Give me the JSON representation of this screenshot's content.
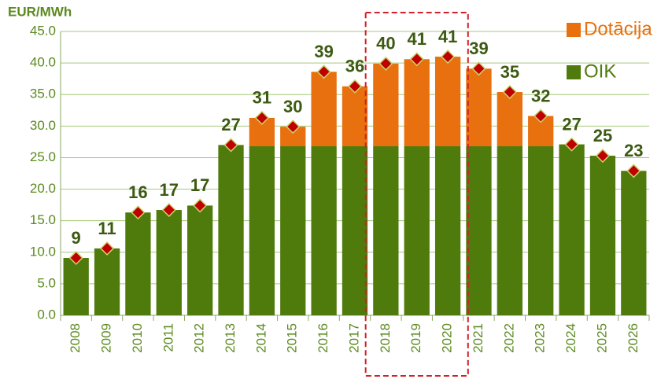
{
  "chart_data": {
    "type": "stacked_bar",
    "ylabel": "EUR/MWh",
    "categories": [
      "2008",
      "2009",
      "2010",
      "2011",
      "2012",
      "2013",
      "2014",
      "2015",
      "2016",
      "2017",
      "2018",
      "2019",
      "2020",
      "2021",
      "2022",
      "2023",
      "2024",
      "2025",
      "2026"
    ],
    "series": [
      {
        "name": "OIK",
        "color": "#4f7b0c",
        "values": [
          9.1,
          10.6,
          16.3,
          16.7,
          17.4,
          27.0,
          26.8,
          26.8,
          26.8,
          26.8,
          26.8,
          26.8,
          26.8,
          26.8,
          26.8,
          26.8,
          27.1,
          25.3,
          22.9
        ]
      },
      {
        "name": "Dotācija",
        "color": "#e8700e",
        "values": [
          0,
          0,
          0,
          0,
          0,
          0,
          4.5,
          3.1,
          11.8,
          9.5,
          13.1,
          13.8,
          14.2,
          12.3,
          8.6,
          4.8,
          0,
          0,
          0
        ]
      }
    ],
    "totals": {
      "color": "#c00000",
      "values": [
        9.1,
        10.6,
        16.3,
        16.7,
        17.4,
        27.0,
        31.3,
        29.9,
        38.6,
        36.3,
        39.9,
        40.6,
        41.0,
        39.1,
        35.4,
        31.6,
        27.1,
        25.3,
        22.9
      ],
      "value_labels": [
        "9",
        "11",
        "16",
        "17",
        "17",
        "27",
        "31",
        "30",
        "39",
        "36",
        "40",
        "41",
        "41",
        "39",
        "35",
        "32",
        "27",
        "25",
        "23"
      ]
    },
    "ylim": [
      0,
      45
    ],
    "yticks": [
      {
        "value": 0,
        "label": "0.0"
      },
      {
        "value": 5,
        "label": "5.0"
      },
      {
        "value": 10,
        "label": "10.0"
      },
      {
        "value": 15,
        "label": "15.0"
      },
      {
        "value": 20,
        "label": "20.0"
      },
      {
        "value": 25,
        "label": "25.0"
      },
      {
        "value": 30,
        "label": "30.0"
      },
      {
        "value": 35,
        "label": "35.0"
      },
      {
        "value": 40,
        "label": "40.0"
      },
      {
        "value": 45,
        "label": "45.0"
      }
    ],
    "grid": true,
    "legend": "upper right"
  }
}
